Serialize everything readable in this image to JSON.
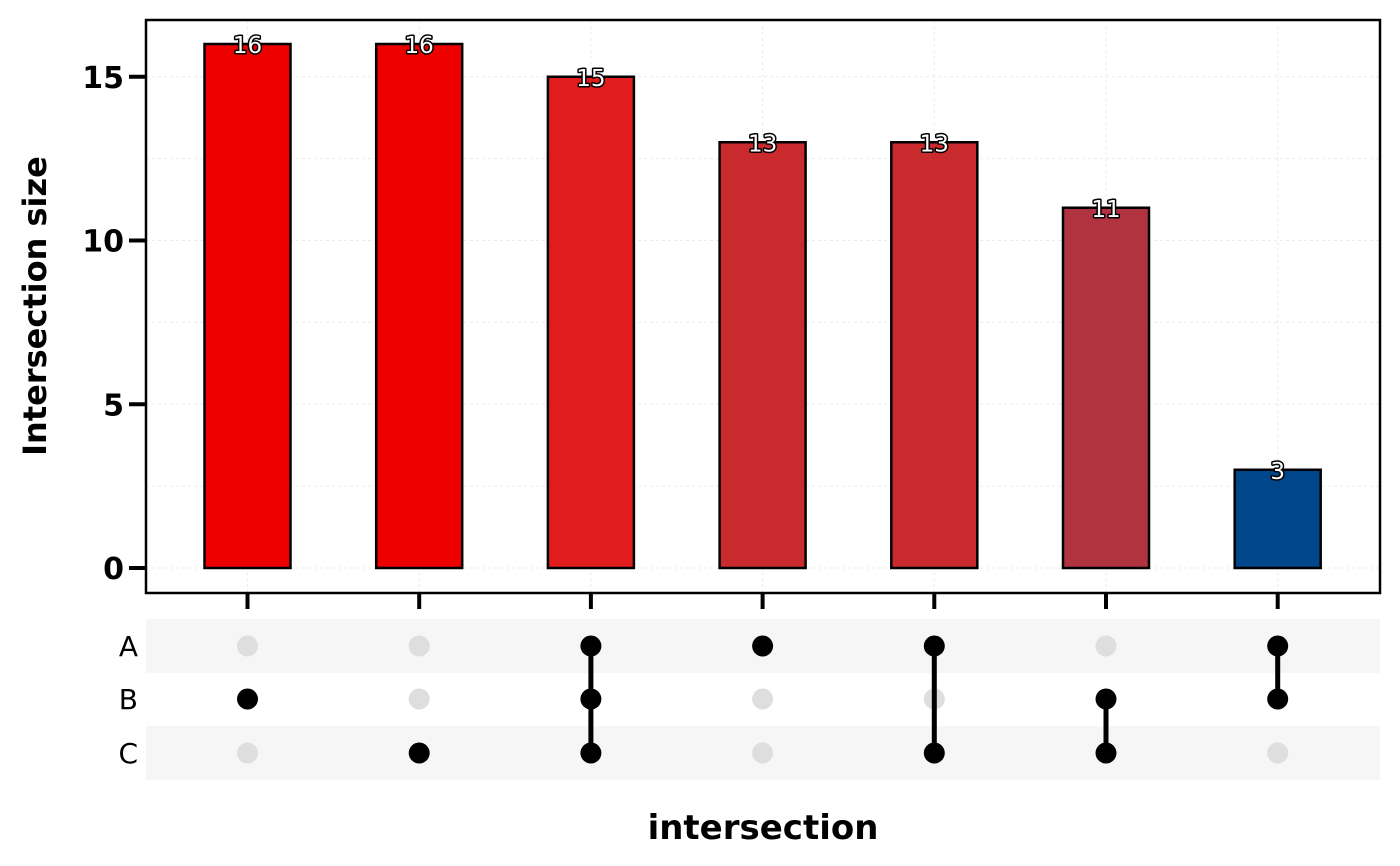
{
  "chart_data": {
    "type": "bar",
    "subtype": "upset",
    "ylabel": "Intersection size",
    "xlabel": "intersection",
    "ylim": [
      0,
      16.7
    ],
    "yticks": [
      0,
      5,
      10,
      15
    ],
    "grid": true,
    "sets": [
      "A",
      "B",
      "C"
    ],
    "intersections": [
      {
        "sets": [
          "B"
        ],
        "value": 16,
        "label": "16",
        "color": "#ec0000"
      },
      {
        "sets": [
          "C"
        ],
        "value": 16,
        "label": "16",
        "color": "#ec0000"
      },
      {
        "sets": [
          "A",
          "B",
          "C"
        ],
        "value": 15,
        "label": "15",
        "color": "#e11c1c"
      },
      {
        "sets": [
          "A"
        ],
        "value": 13,
        "label": "13",
        "color": "#c92a2d"
      },
      {
        "sets": [
          "A",
          "C"
        ],
        "value": 13,
        "label": "13",
        "color": "#c92a2d"
      },
      {
        "sets": [
          "B",
          "C"
        ],
        "value": 11,
        "label": "11",
        "color": "#b23340"
      },
      {
        "sets": [
          "A",
          "B"
        ],
        "value": 3,
        "label": "3",
        "color": "#00468b"
      }
    ],
    "dot_active_color": "#000000",
    "dot_inactive_color": "#dedede",
    "matrix_stripe_color": "#f6f6f6"
  }
}
